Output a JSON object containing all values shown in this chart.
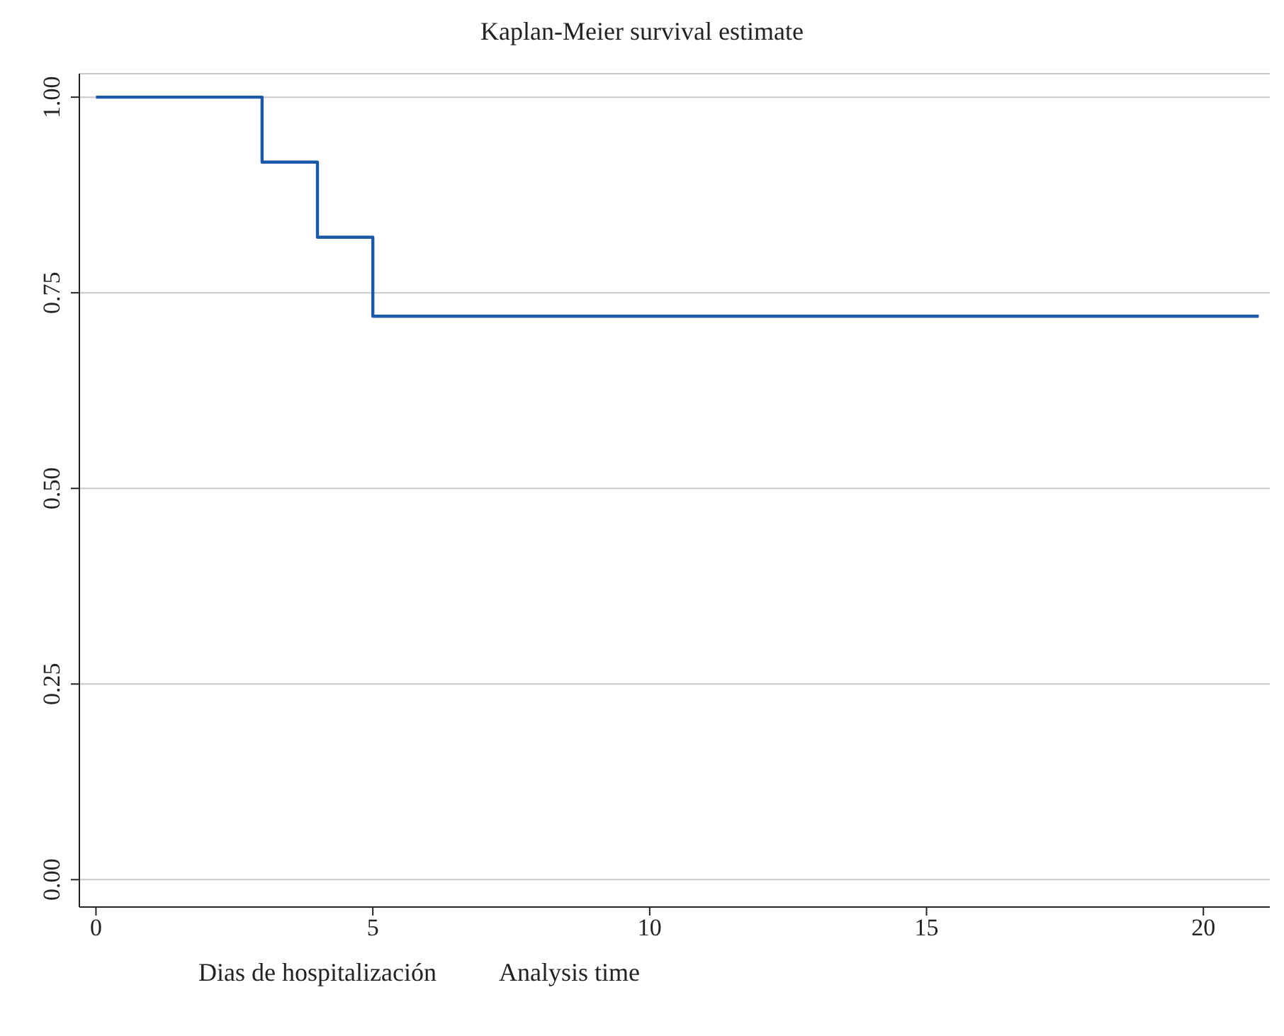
{
  "chart_data": {
    "type": "step",
    "title": "Kaplan-Meier survival estimate",
    "xlabel": "Analysis time",
    "annotations": [
      "Dias de hospitalización"
    ],
    "x": [
      0,
      3,
      4,
      5,
      21
    ],
    "series": [
      {
        "color": "#1a5aa8",
        "values": [
          1,
          0.917,
          0.821,
          0.72,
          0.72
        ]
      }
    ],
    "xlim": [
      -0.3,
      21.2
    ],
    "xticks": [
      0,
      5,
      10,
      15,
      20
    ],
    "ylim": [
      -0.035,
      1.03
    ],
    "yticks": [
      {
        "value": 0,
        "label": "0.00"
      },
      {
        "value": 0.25,
        "label": "0.25"
      },
      {
        "value": 0.5,
        "label": "0.50"
      },
      {
        "value": 0.75,
        "label": "0.75"
      },
      {
        "value": 1,
        "label": "1.00"
      }
    ],
    "grid": "y",
    "legend": false,
    "marker": "none",
    "line_style": "solid"
  }
}
